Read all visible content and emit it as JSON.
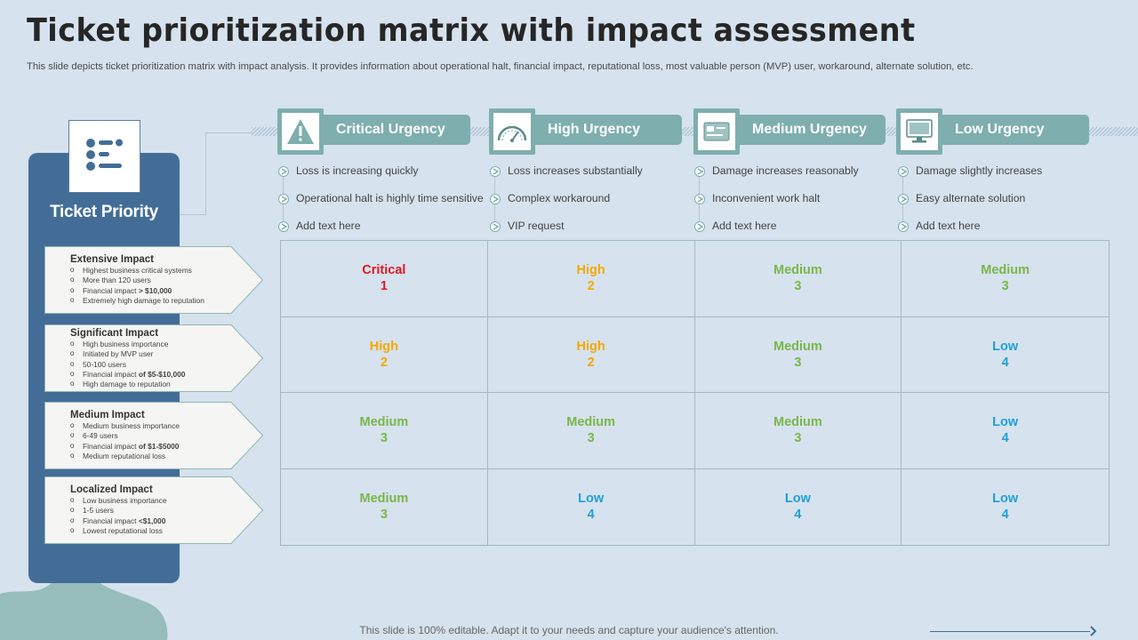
{
  "title": "Ticket prioritization matrix with impact assessment",
  "subtitle": "This slide depicts ticket prioritization matrix with impact analysis. It provides information about operational halt, financial impact, reputational loss, most valuable person (MVP) user, workaround, alternate solution, etc.",
  "side": {
    "label": "Ticket Priority",
    "icon": "priority-list-icon"
  },
  "impacts": [
    {
      "title": "Extensive Impact",
      "items": [
        "Highest business critical systems",
        "More  than 120 users",
        "Financial impact > $10,000",
        "Extremely high damage  to reputation"
      ]
    },
    {
      "title": "Significant Impact",
      "items": [
        "High business importance",
        "Initiated by MVP user",
        "50-100 users",
        "Financial impact of $5-$10,000",
        "High damage to reputation"
      ]
    },
    {
      "title": "Medium Impact",
      "items": [
        "Medium  business importance",
        "6-49 users",
        "Financial impact of $1-$5000",
        "Medium  reputational loss"
      ]
    },
    {
      "title": "Localized Impact",
      "items": [
        "Low  business importance",
        "1-5 users",
        "Financial impact <$1,000",
        "Lowest reputational loss"
      ]
    }
  ],
  "urgencies": [
    {
      "label": "Critical Urgency",
      "icon": "warning-icon",
      "bullets": [
        "Loss is increasing quickly",
        "Operational halt is highly time sensitive",
        "Add text here"
      ]
    },
    {
      "label": "High Urgency",
      "icon": "speedometer-icon",
      "bullets": [
        "Loss increases substantially",
        "Complex workaround",
        "VIP  request"
      ]
    },
    {
      "label": "Medium Urgency",
      "icon": "card-icon",
      "bullets": [
        "Damage increases reasonably",
        "Inconvenient work halt",
        "Add text here"
      ]
    },
    {
      "label": "Low Urgency",
      "icon": "monitor-icon",
      "bullets": [
        "Damage slightly increases",
        "Easy alternate solution",
        "Add text here"
      ]
    }
  ],
  "colors": {
    "Critical": "#e0161e",
    "High": "#f5a800",
    "Medium": "#7ab648",
    "Low": "#1ea0d8"
  },
  "matrix": [
    [
      {
        "level": "Critical",
        "num": "1"
      },
      {
        "level": "High",
        "num": "2"
      },
      {
        "level": "Medium",
        "num": "3"
      },
      {
        "level": "Medium",
        "num": "3"
      }
    ],
    [
      {
        "level": "High",
        "num": "2"
      },
      {
        "level": "High",
        "num": "2"
      },
      {
        "level": "Medium",
        "num": "3"
      },
      {
        "level": "Low",
        "num": "4"
      }
    ],
    [
      {
        "level": "Medium",
        "num": "3"
      },
      {
        "level": "Medium",
        "num": "3"
      },
      {
        "level": "Medium",
        "num": "3"
      },
      {
        "level": "Low",
        "num": "4"
      }
    ],
    [
      {
        "level": "Medium",
        "num": "3"
      },
      {
        "level": "Low",
        "num": "4"
      },
      {
        "level": "Low",
        "num": "4"
      },
      {
        "level": "Low",
        "num": "4"
      }
    ]
  ],
  "footer": "This slide is 100% editable. Adapt it to your needs and capture your audience's attention."
}
